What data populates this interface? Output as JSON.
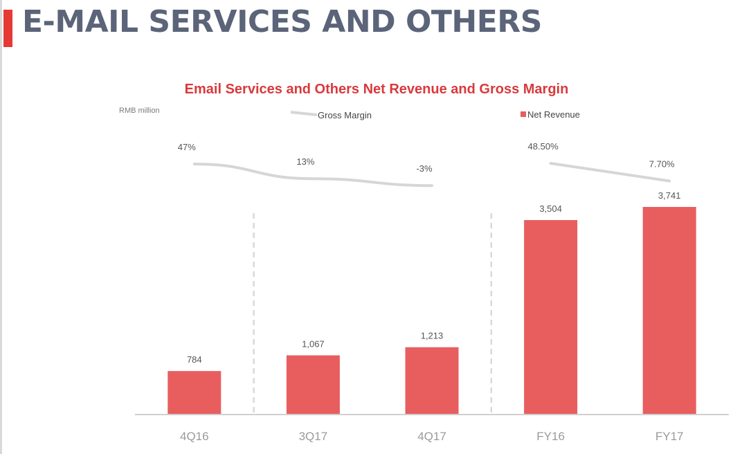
{
  "page": {
    "title": "E-MAIL SERVICES AND OTHERS"
  },
  "chart_data": {
    "type": "bar",
    "title": "Email Services and Others Net Revenue and Gross Margin",
    "unit_label": "RMB million",
    "categories": [
      "4Q16",
      "3Q17",
      "4Q17",
      "FY16",
      "FY17"
    ],
    "series": [
      {
        "name": "Net Revenue",
        "type": "bar",
        "values": [
          784,
          1067,
          1213,
          3504,
          3741
        ],
        "labels": [
          "784",
          "1,067",
          "1,213",
          "3,504",
          "3,741"
        ],
        "color": "#e85e5e"
      },
      {
        "name": "Gross Margin",
        "type": "line",
        "values": [
          47,
          13,
          -3,
          48.5,
          7.7
        ],
        "labels": [
          "47%",
          "13%",
          "-3%",
          "48.50%",
          "7.70%"
        ],
        "segments": [
          [
            0,
            1,
            2
          ],
          [
            3,
            4
          ]
        ],
        "color": "#d6d6d6"
      }
    ],
    "separators_after": [
      "4Q16",
      "4Q17"
    ],
    "grid": false,
    "legend": "top",
    "colors": {
      "title": "#d9393c",
      "heading": "#5b6479",
      "axis": "#d0d0d0",
      "tick": "#9a9a9a",
      "label": "#555555"
    }
  }
}
